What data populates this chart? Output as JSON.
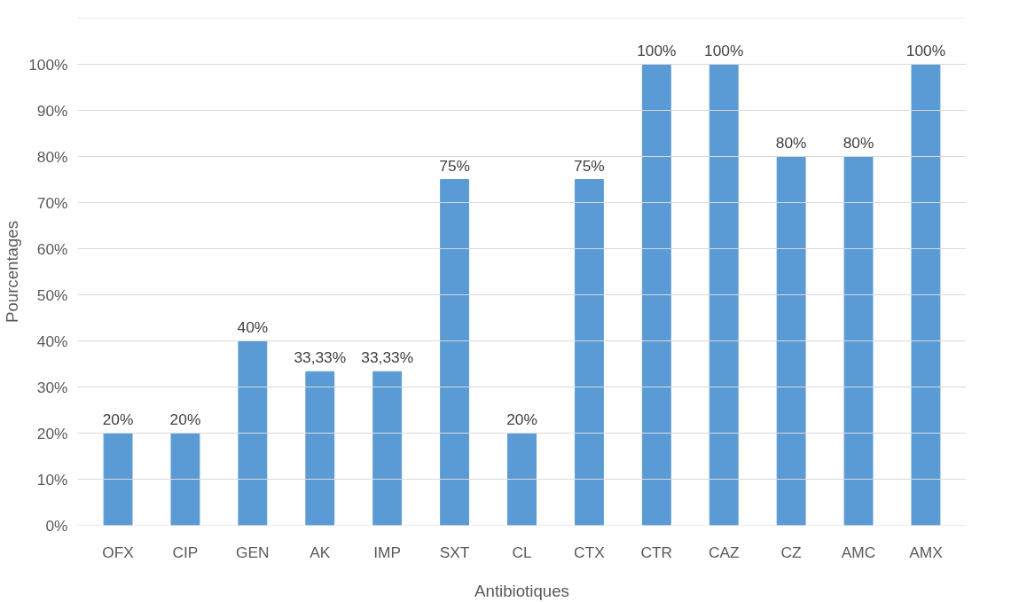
{
  "chart_data": {
    "type": "bar",
    "xlabel": "Antibiotiques",
    "ylabel": "Pourcentages",
    "categories": [
      "OFX",
      "CIP",
      "GEN",
      "AK",
      "IMP",
      "SXT",
      "CL",
      "CTX",
      "CTR",
      "CAZ",
      "CZ",
      "AMC",
      "AMX"
    ],
    "values": [
      20,
      20,
      40,
      33.33,
      33.33,
      75,
      20,
      75,
      100,
      100,
      80,
      80,
      100
    ],
    "value_labels": [
      "20%",
      "20%",
      "40%",
      "33,33%",
      "33,33%",
      "75%",
      "20%",
      "75%",
      "100%",
      "100%",
      "80%",
      "80%",
      "100%"
    ],
    "color": "#5b9bd5",
    "ylim": [
      0,
      110
    ],
    "yticks": [
      {
        "value": 0,
        "label": "0%"
      },
      {
        "value": 10,
        "label": "10%"
      },
      {
        "value": 20,
        "label": "20%"
      },
      {
        "value": 30,
        "label": "30%"
      },
      {
        "value": 40,
        "label": "40%"
      },
      {
        "value": 50,
        "label": "50%"
      },
      {
        "value": 60,
        "label": "60%"
      },
      {
        "value": 70,
        "label": "70%"
      },
      {
        "value": 80,
        "label": "80%"
      },
      {
        "value": 90,
        "label": "90%"
      },
      {
        "value": 100,
        "label": "100%"
      },
      {
        "value": 110,
        "label": null
      }
    ],
    "grid": "y"
  }
}
